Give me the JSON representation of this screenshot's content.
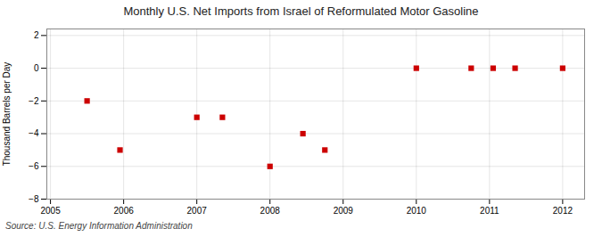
{
  "chart_data": {
    "type": "scatter",
    "title": "Monthly U.S. Net Imports from Israel of Reformulated Motor Gasoline",
    "ylabel": "Thousand Barrels per Day",
    "source": "Source: U.S. Energy Information Administration",
    "x": [
      2005.5,
      2005.95,
      2007.0,
      2007.35,
      2008.0,
      2008.45,
      2008.75,
      2010.0,
      2010.75,
      2011.05,
      2011.35,
      2012.0
    ],
    "values": [
      -2,
      -5,
      -3,
      -3,
      -6,
      -4,
      -5,
      0,
      0,
      0,
      0,
      0
    ],
    "color": "#cc0000",
    "marker": "square",
    "xlim": [
      2004.95,
      2012.3
    ],
    "ylim": [
      -8,
      2.4
    ],
    "xticks": [
      2005,
      2006,
      2007,
      2008,
      2009,
      2010,
      2011,
      2012
    ],
    "yticks": [
      -8,
      -6,
      -4,
      -2,
      0,
      2
    ],
    "grid": true
  }
}
